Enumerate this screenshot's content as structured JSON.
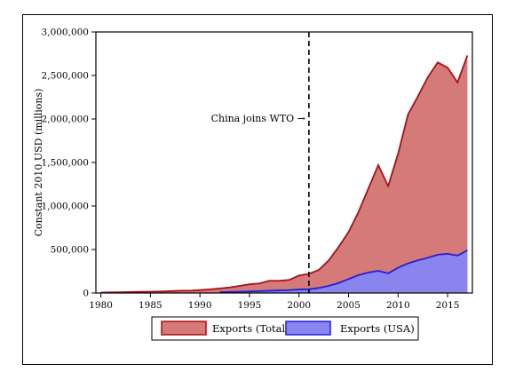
{
  "chart_data": {
    "type": "area",
    "ylabel": "Constant 2010 USD (millions)",
    "xlabel": "",
    "xlim": [
      1979.5,
      2017.5
    ],
    "ylim": [
      0,
      3000000
    ],
    "x_ticks": [
      1980,
      1985,
      1990,
      1995,
      2000,
      2005,
      2010,
      2015
    ],
    "x_tick_labels": [
      "1980",
      "1985",
      "1990",
      "1995",
      "2000",
      "2005",
      "2010",
      "2015"
    ],
    "y_ticks": [
      0,
      500000,
      1000000,
      1500000,
      2000000,
      2500000,
      3000000
    ],
    "y_tick_labels": [
      "0",
      "500,000",
      "1,000,000",
      "1,500,000",
      "2,000,000",
      "2,500,000",
      "3,000,000"
    ],
    "grid": false,
    "legend_position": "bottom",
    "series": [
      {
        "name": "Exports (Total)",
        "fill": "#d47a78",
        "stroke": "#a80f14",
        "x": [
          1980,
          1981,
          1982,
          1983,
          1984,
          1985,
          1986,
          1987,
          1988,
          1989,
          1990,
          1991,
          1992,
          1993,
          1994,
          1995,
          1996,
          1997,
          1998,
          1999,
          2000,
          2001,
          2002,
          2003,
          2004,
          2005,
          2006,
          2007,
          2008,
          2009,
          2010,
          2011,
          2012,
          2013,
          2014,
          2015,
          2016,
          2017
        ],
        "values": [
          5000,
          7000,
          9000,
          11000,
          14000,
          15000,
          17000,
          21000,
          27000,
          27000,
          34000,
          42000,
          52000,
          64000,
          82000,
          100000,
          110000,
          140000,
          140000,
          150000,
          200000,
          220000,
          265000,
          375000,
          530000,
          700000,
          930000,
          1200000,
          1470000,
          1230000,
          1600000,
          2050000,
          2260000,
          2480000,
          2650000,
          2590000,
          2420000,
          2730000
        ]
      },
      {
        "name": "Exports (USA)",
        "fill": "#8a85ee",
        "stroke": "#1f1fd8",
        "x": [
          1992,
          1993,
          1994,
          1995,
          1996,
          1997,
          1998,
          1999,
          2000,
          2001,
          2002,
          2003,
          2004,
          2005,
          2006,
          2007,
          2008,
          2009,
          2010,
          2011,
          2012,
          2013,
          2014,
          2015,
          2016,
          2017
        ],
        "values": [
          10000,
          12000,
          15000,
          18000,
          22000,
          26000,
          30000,
          33000,
          40000,
          43000,
          58000,
          82000,
          115000,
          160000,
          205000,
          235000,
          255000,
          225000,
          290000,
          340000,
          375000,
          405000,
          440000,
          450000,
          430000,
          490000
        ]
      }
    ],
    "annotations": [
      {
        "text": "China joins WTO →",
        "x": 2001,
        "line": "dashed-vertical"
      }
    ]
  }
}
